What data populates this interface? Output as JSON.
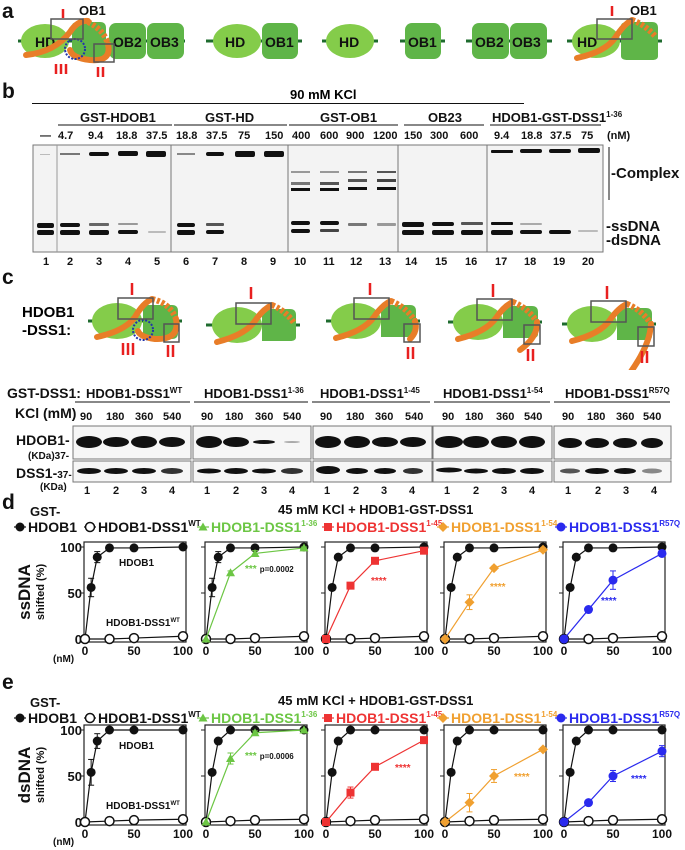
{
  "panel_a": {
    "label": "a",
    "diagrams": [
      {
        "domains": [
          "HD",
          "OB1",
          "OB2",
          "OB3"
        ],
        "annotations": [
          "OB1",
          "I",
          "II",
          "III"
        ]
      },
      {
        "domains": [
          "HD",
          "OB1"
        ]
      },
      {
        "domains": [
          "HD"
        ]
      },
      {
        "domains": [
          "OB1"
        ]
      },
      {
        "domains": [
          "OB2",
          "OB3"
        ]
      },
      {
        "domains": [
          "HD",
          "OB1"
        ],
        "annotations": [
          "OB1",
          "I"
        ]
      }
    ]
  },
  "panel_b": {
    "label": "b",
    "condition": "90 mM KCl",
    "groups": [
      {
        "name": "GST-HDOB1",
        "concs": [
          "4.7",
          "9.4",
          "18.8",
          "37.5"
        ]
      },
      {
        "name": "GST-HD",
        "concs": [
          "18.8",
          "37.5",
          "75",
          "150"
        ]
      },
      {
        "name": "GST-OB1",
        "concs": [
          "400",
          "600",
          "900",
          "1200"
        ]
      },
      {
        "name": "OB23",
        "concs": [
          "150",
          "300",
          "600"
        ]
      },
      {
        "name": "HDOB1-GST-DSS1",
        "sup": "1-36",
        "concs": [
          "9.4",
          "18.8",
          "37.5",
          "75"
        ]
      }
    ],
    "neg_control": "—",
    "unit": "(nM)",
    "lanes": [
      "1",
      "2",
      "3",
      "4",
      "5",
      "6",
      "7",
      "8",
      "9",
      "10",
      "11",
      "12",
      "13",
      "14",
      "15",
      "16",
      "17",
      "18",
      "19",
      "20"
    ],
    "band_labels": {
      "complex": "-Complex",
      "ssdna": "-ssDNA",
      "dsdna": "-dsDNA"
    }
  },
  "panel_c": {
    "label": "c",
    "construct_label_1": "HDOB1",
    "construct_label_2": "-DSS1:",
    "row_label": "GST-DSS1:",
    "kcl_label": "KCl (mM)",
    "groups": [
      {
        "name": "HDOB1-DSS1",
        "sup": "WT"
      },
      {
        "name": "HDOB1-DSS1",
        "sup": "1-36"
      },
      {
        "name": "HDOB1-DSS1",
        "sup": "1-45"
      },
      {
        "name": "HDOB1-DSS1",
        "sup": "1-54"
      },
      {
        "name": "HDOB1-DSS1",
        "sup": "R57Q"
      }
    ],
    "kcl_values": [
      "90",
      "180",
      "360",
      "540"
    ],
    "lanes": [
      "1",
      "2",
      "3",
      "4"
    ],
    "blot_rows": [
      {
        "label": "HDOB1-",
        "sublabel": "(KDa)37-"
      },
      {
        "label": "DSS1-",
        "marker": "37-",
        "sublabel": "(KDa)"
      }
    ]
  },
  "legend": {
    "prefix": "GST-",
    "items": [
      {
        "label": "HDOB1",
        "color": "#111111",
        "marker": "filled-circle"
      },
      {
        "label": "HDOB1-DSS1",
        "sup": "WT",
        "color": "#111111",
        "marker": "open-circle"
      },
      {
        "label": "HDOB1-DSS1",
        "sup": "1-36",
        "color": "#6cc644",
        "marker": "triangle"
      },
      {
        "label": "HDOB1-DSS1",
        "sup": "1-45",
        "color": "#ee3333",
        "marker": "square"
      },
      {
        "label": "HDOB1-DSS1",
        "sup": "1-54",
        "color": "#f0a030",
        "marker": "diamond"
      },
      {
        "label": "HDOB1-DSS1",
        "sup": "R57Q",
        "color": "#2a2aee",
        "marker": "circle"
      }
    ]
  },
  "chart_data": [
    {
      "panel": "d",
      "type": "line",
      "title": "45 mM KCl + HDOB1-GST-DSS1",
      "ylabel": "ssDNA shifted (%)",
      "xlabel": "(nM)",
      "xticks": [
        0,
        50,
        100
      ],
      "yticks": [
        0,
        50,
        100
      ],
      "ylim": [
        0,
        105
      ],
      "subplots": [
        {
          "series": [
            {
              "name": "HDOB1",
              "x": [
                0,
                6.25,
                12.5,
                25,
                50,
                100
              ],
              "y": [
                0,
                56,
                89,
                99,
                99,
                100
              ],
              "err": [
                0,
                10,
                6,
                0,
                0,
                0
              ]
            },
            {
              "name": "HDOB1-DSS1WT",
              "x": [
                0,
                25,
                50,
                100
              ],
              "y": [
                0,
                0,
                1,
                3
              ]
            }
          ],
          "annotations": [
            "HDOB1",
            "HDOB1-DSS1WT"
          ]
        },
        {
          "series": [
            {
              "name": "HDOB1",
              "x": [
                0,
                6.25,
                12.5,
                25,
                50,
                100
              ],
              "y": [
                0,
                56,
                89,
                99,
                99,
                100
              ],
              "err": [
                0,
                10,
                6,
                0,
                0,
                0
              ]
            },
            {
              "name": "HDOB1-DSS1WT",
              "x": [
                0,
                25,
                50,
                100
              ],
              "y": [
                0,
                0,
                1,
                3
              ]
            },
            {
              "name": "HDOB1-DSS1 1-36",
              "x": [
                0,
                25,
                50,
                100
              ],
              "y": [
                0,
                72,
                93,
                99
              ],
              "err": [
                0,
                2,
                3,
                1
              ]
            }
          ],
          "annotations": [
            "*** p=0.0002"
          ]
        },
        {
          "series": [
            {
              "name": "HDOB1",
              "x": [
                0,
                6.25,
                12.5,
                25,
                50,
                100
              ],
              "y": [
                0,
                56,
                89,
                99,
                99,
                100
              ]
            },
            {
              "name": "HDOB1-DSS1WT",
              "x": [
                0,
                25,
                50,
                100
              ],
              "y": [
                0,
                0,
                1,
                3
              ]
            },
            {
              "name": "HDOB1-DSS1 1-45",
              "x": [
                0,
                25,
                50,
                100
              ],
              "y": [
                0,
                58,
                85,
                96
              ]
            }
          ],
          "annotations": [
            "****"
          ]
        },
        {
          "series": [
            {
              "name": "HDOB1",
              "x": [
                0,
                6.25,
                12.5,
                25,
                50,
                100
              ],
              "y": [
                0,
                56,
                89,
                99,
                99,
                100
              ]
            },
            {
              "name": "HDOB1-DSS1WT",
              "x": [
                0,
                25,
                50,
                100
              ],
              "y": [
                0,
                0,
                1,
                3
              ]
            },
            {
              "name": "HDOB1-DSS1 1-54",
              "x": [
                0,
                25,
                50,
                100
              ],
              "y": [
                0,
                40,
                77,
                97
              ],
              "err": [
                0,
                8,
                2,
                2
              ]
            }
          ],
          "annotations": [
            "****"
          ]
        },
        {
          "series": [
            {
              "name": "HDOB1",
              "x": [
                0,
                6.25,
                12.5,
                25,
                50,
                100
              ],
              "y": [
                0,
                56,
                89,
                99,
                99,
                100
              ]
            },
            {
              "name": "HDOB1-DSS1WT",
              "x": [
                0,
                25,
                50,
                100
              ],
              "y": [
                0,
                0,
                1,
                3
              ]
            },
            {
              "name": "HDOB1-DSS1 R57Q",
              "x": [
                0,
                25,
                50,
                100
              ],
              "y": [
                0,
                32,
                64,
                93
              ],
              "err": [
                0,
                2,
                10,
                3
              ]
            }
          ],
          "annotations": [
            "****"
          ]
        }
      ]
    },
    {
      "panel": "e",
      "type": "line",
      "title": "45 mM KCl + HDOB1-GST-DSS1",
      "ylabel": "dsDNA shifted (%)",
      "xlabel": "(nM)",
      "xticks": [
        0,
        50,
        100
      ],
      "yticks": [
        0,
        50,
        100
      ],
      "ylim": [
        0,
        105
      ],
      "subplots": [
        {
          "series": [
            {
              "name": "HDOB1",
              "x": [
                0,
                6.25,
                12.5,
                25,
                50,
                100
              ],
              "y": [
                0,
                54,
                88,
                100,
                100,
                100
              ],
              "err": [
                0,
                14,
                8,
                0,
                0,
                0
              ]
            },
            {
              "name": "HDOB1-DSS1WT",
              "x": [
                0,
                25,
                50,
                100
              ],
              "y": [
                0,
                1,
                2,
                3
              ]
            }
          ],
          "annotations": [
            "HDOB1",
            "HDOB1-DSS1WT"
          ]
        },
        {
          "series": [
            {
              "name": "HDOB1",
              "x": [
                0,
                6.25,
                12.5,
                25,
                50,
                100
              ],
              "y": [
                0,
                54,
                88,
                100,
                100,
                100
              ]
            },
            {
              "name": "HDOB1-DSS1WT",
              "x": [
                0,
                25,
                50,
                100
              ],
              "y": [
                0,
                1,
                2,
                3
              ]
            },
            {
              "name": "HDOB1-DSS1 1-36",
              "x": [
                0,
                25,
                50,
                100
              ],
              "y": [
                0,
                69,
                97,
                100
              ],
              "err": [
                0,
                6,
                2,
                1
              ]
            }
          ],
          "annotations": [
            "*** p=0.0006"
          ]
        },
        {
          "series": [
            {
              "name": "HDOB1",
              "x": [
                0,
                6.25,
                12.5,
                25,
                50,
                100
              ],
              "y": [
                0,
                54,
                88,
                100,
                100,
                100
              ]
            },
            {
              "name": "HDOB1-DSS1WT",
              "x": [
                0,
                25,
                50,
                100
              ],
              "y": [
                0,
                1,
                2,
                3
              ]
            },
            {
              "name": "HDOB1-DSS1 1-45",
              "x": [
                0,
                25,
                50,
                100
              ],
              "y": [
                0,
                32,
                60,
                89
              ],
              "err": [
                0,
                6,
                1,
                1
              ]
            }
          ],
          "annotations": [
            "****"
          ]
        },
        {
          "series": [
            {
              "name": "HDOB1",
              "x": [
                0,
                6.25,
                12.5,
                25,
                50,
                100
              ],
              "y": [
                0,
                54,
                88,
                100,
                100,
                100
              ]
            },
            {
              "name": "HDOB1-DSS1WT",
              "x": [
                0,
                25,
                50,
                100
              ],
              "y": [
                0,
                1,
                2,
                3
              ]
            },
            {
              "name": "HDOB1-DSS1 1-54",
              "x": [
                0,
                25,
                50,
                100
              ],
              "y": [
                0,
                21,
                50,
                79
              ],
              "err": [
                0,
                10,
                7,
                2
              ]
            }
          ],
          "annotations": [
            "****"
          ]
        },
        {
          "series": [
            {
              "name": "HDOB1",
              "x": [
                0,
                6.25,
                12.5,
                25,
                50,
                100
              ],
              "y": [
                0,
                54,
                88,
                100,
                100,
                100
              ]
            },
            {
              "name": "HDOB1-DSS1WT",
              "x": [
                0,
                25,
                50,
                100
              ],
              "y": [
                0,
                1,
                2,
                3
              ]
            },
            {
              "name": "HDOB1-DSS1 R57Q",
              "x": [
                0,
                25,
                50,
                100
              ],
              "y": [
                0,
                21,
                50,
                77
              ],
              "err": [
                0,
                1,
                6,
                6
              ]
            }
          ],
          "annotations": [
            "****"
          ]
        }
      ]
    }
  ],
  "panel_d": {
    "label": "d",
    "ylabel_main": "ssDNA",
    "ylabel_sub": "shifted (%)"
  },
  "panel_e": {
    "label": "e",
    "ylabel_main": "dsDNA",
    "ylabel_sub": "shifted (%)"
  }
}
